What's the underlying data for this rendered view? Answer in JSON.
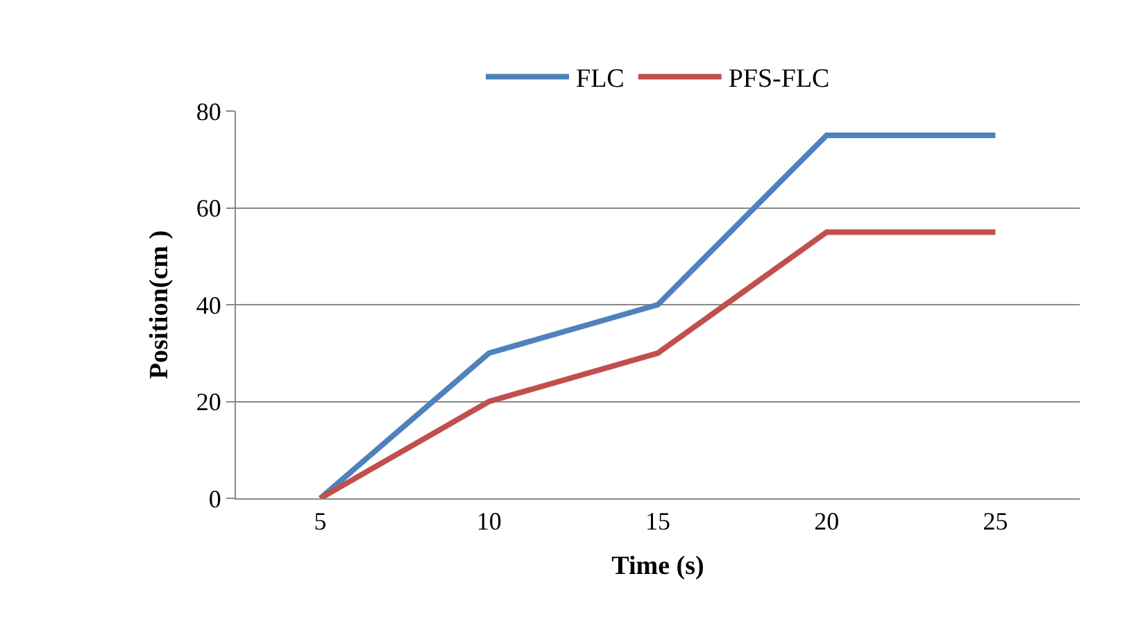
{
  "chart_data": {
    "type": "line",
    "xlabel": "Time (s)",
    "ylabel": "Position(cm )",
    "categories": [
      "5",
      "10",
      "15",
      "20",
      "25"
    ],
    "series": [
      {
        "name": "FLC",
        "color": "#4f81bd",
        "values": [
          0,
          30,
          40,
          75,
          75
        ]
      },
      {
        "name": "PFS-FLC",
        "color": "#c0504d",
        "values": [
          0,
          20,
          30,
          55,
          55
        ]
      }
    ],
    "ylim": [
      0,
      80
    ],
    "yticks": [
      0,
      20,
      40,
      60,
      80
    ],
    "grid": "y",
    "legend": "top",
    "marker": "none",
    "line_style": "solid"
  }
}
